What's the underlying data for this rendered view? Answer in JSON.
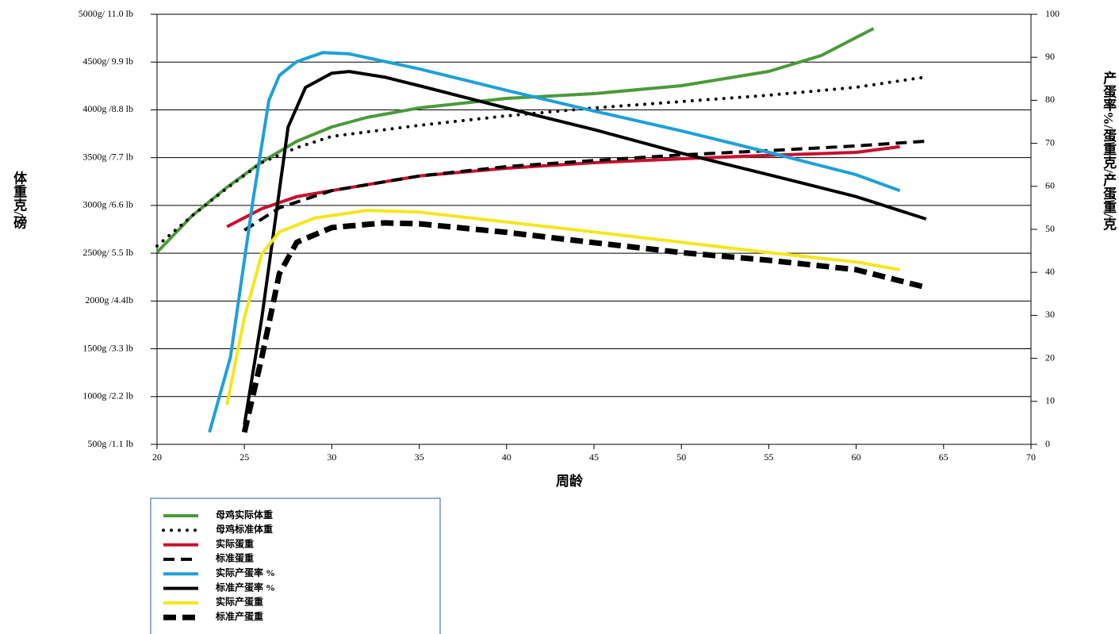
{
  "chart_data": {
    "type": "line",
    "xlabel": "周龄",
    "ylabel": "体重克/磅",
    "y2label": "产蛋率%/蛋重克/产蛋重/克",
    "xlim": [
      20,
      70
    ],
    "xticks": [
      20,
      25,
      30,
      35,
      40,
      45,
      50,
      55,
      60,
      65,
      70
    ],
    "ylim": [
      500,
      5000
    ],
    "yticks": [
      {
        "value": 500,
        "label": "500g  /1.1  lb"
      },
      {
        "value": 1000,
        "label": "1000g  /2.2  lb"
      },
      {
        "value": 1500,
        "label": "1500g  /3.3 lb"
      },
      {
        "value": 2000,
        "label": "2000g  /4.4lb"
      },
      {
        "value": 2500,
        "label": "2500g/  5.5 lb"
      },
      {
        "value": 3000,
        "label": "3000g  /6.6  lb"
      },
      {
        "value": 3500,
        "label": "3500g  /7.7  lb"
      },
      {
        "value": 4000,
        "label": "4000g  /8.8  lb"
      },
      {
        "value": 4500,
        "label": "4500g/  9.9 lb"
      },
      {
        "value": 5000,
        "label": "5000g/  11.0  lb"
      }
    ],
    "y2lim": [
      0,
      100
    ],
    "y2ticks": [
      0,
      10,
      20,
      30,
      40,
      50,
      60,
      70,
      80,
      90,
      100
    ],
    "grid": true,
    "series": [
      {
        "name": "母鸡实际体重",
        "color": "#4a9a3a",
        "style": "solid",
        "axis": "y",
        "x": [
          20,
          22,
          24,
          26,
          28,
          30,
          32,
          35,
          40,
          45,
          50,
          55,
          58,
          61
        ],
        "values": [
          2509,
          2891,
          3190,
          3456,
          3672,
          3821,
          3921,
          4020,
          4120,
          4170,
          4253,
          4402,
          4568,
          4851
        ]
      },
      {
        "name": "母鸡标准体重",
        "color": "#000000",
        "style": "dotted",
        "axis": "y",
        "x": [
          20,
          22,
          24,
          26,
          28,
          30,
          35,
          40,
          45,
          50,
          55,
          60,
          64
        ],
        "values": [
          2576,
          2891,
          3180,
          3448,
          3605,
          3722,
          3838,
          3937,
          4020,
          4087,
          4153,
          4236,
          4344
        ]
      },
      {
        "name": "实际蛋重",
        "color": "#c8102e",
        "style": "solid",
        "axis": "y2",
        "x": [
          24,
          26,
          28,
          30,
          35,
          40,
          45,
          50,
          55,
          60,
          62.5
        ],
        "values": [
          50.6,
          54.8,
          57.6,
          59,
          62.4,
          64.2,
          65.5,
          66.4,
          67.2,
          67.9,
          69.2
        ]
      },
      {
        "name": "标准蛋重",
        "color": "#000000",
        "style": "dashed",
        "axis": "y2",
        "x": [
          25,
          27,
          30,
          35,
          40,
          45,
          50,
          55,
          60,
          64
        ],
        "values": [
          49.8,
          55,
          59,
          62.4,
          64.6,
          66,
          67.3,
          68.3,
          69.4,
          70.5
        ]
      },
      {
        "name": "实际产蛋率 %",
        "color": "#1ea0d8",
        "style": "solid",
        "axis": "y2",
        "x": [
          23,
          24.2,
          25.5,
          26.4,
          27,
          28,
          29.5,
          31,
          35,
          40,
          45,
          50,
          55,
          60,
          62.5
        ],
        "values": [
          2.8,
          20.3,
          57,
          80,
          85.8,
          89,
          91.1,
          90.8,
          87.3,
          82.3,
          77.5,
          72.9,
          67.9,
          62.7,
          59
        ]
      },
      {
        "name": "标准产蛋率 %",
        "color": "#000000",
        "style": "solid",
        "axis": "y2",
        "x": [
          25,
          26,
          27.5,
          28.5,
          30,
          31,
          33,
          35,
          40,
          45,
          50,
          55,
          60,
          64
        ],
        "values": [
          4.6,
          29.5,
          73.8,
          83,
          86.3,
          86.7,
          85.4,
          83.4,
          78.2,
          73.2,
          67.7,
          62.7,
          57.6,
          52.4
        ]
      },
      {
        "name": "实际产蛋重",
        "color": "#f5e61a",
        "style": "solid",
        "axis": "y2",
        "x": [
          24,
          25,
          26,
          27,
          29,
          32,
          35,
          40,
          45,
          50,
          55,
          60,
          62.5
        ],
        "values": [
          9.2,
          29.5,
          44.3,
          49.4,
          52.6,
          54.4,
          54,
          51.7,
          49.4,
          47,
          44.6,
          42.4,
          40.6
        ]
      },
      {
        "name": "标准产蛋重",
        "color": "#000000",
        "style": "thick-dashed",
        "axis": "y2",
        "x": [
          25,
          26,
          27,
          28,
          30,
          33,
          35,
          40,
          45,
          50,
          55,
          60,
          64
        ],
        "values": [
          2.8,
          20.3,
          39.7,
          47,
          50.4,
          51.5,
          51.3,
          49.3,
          46.9,
          44.6,
          42.8,
          40.6,
          36.5
        ]
      }
    ]
  }
}
